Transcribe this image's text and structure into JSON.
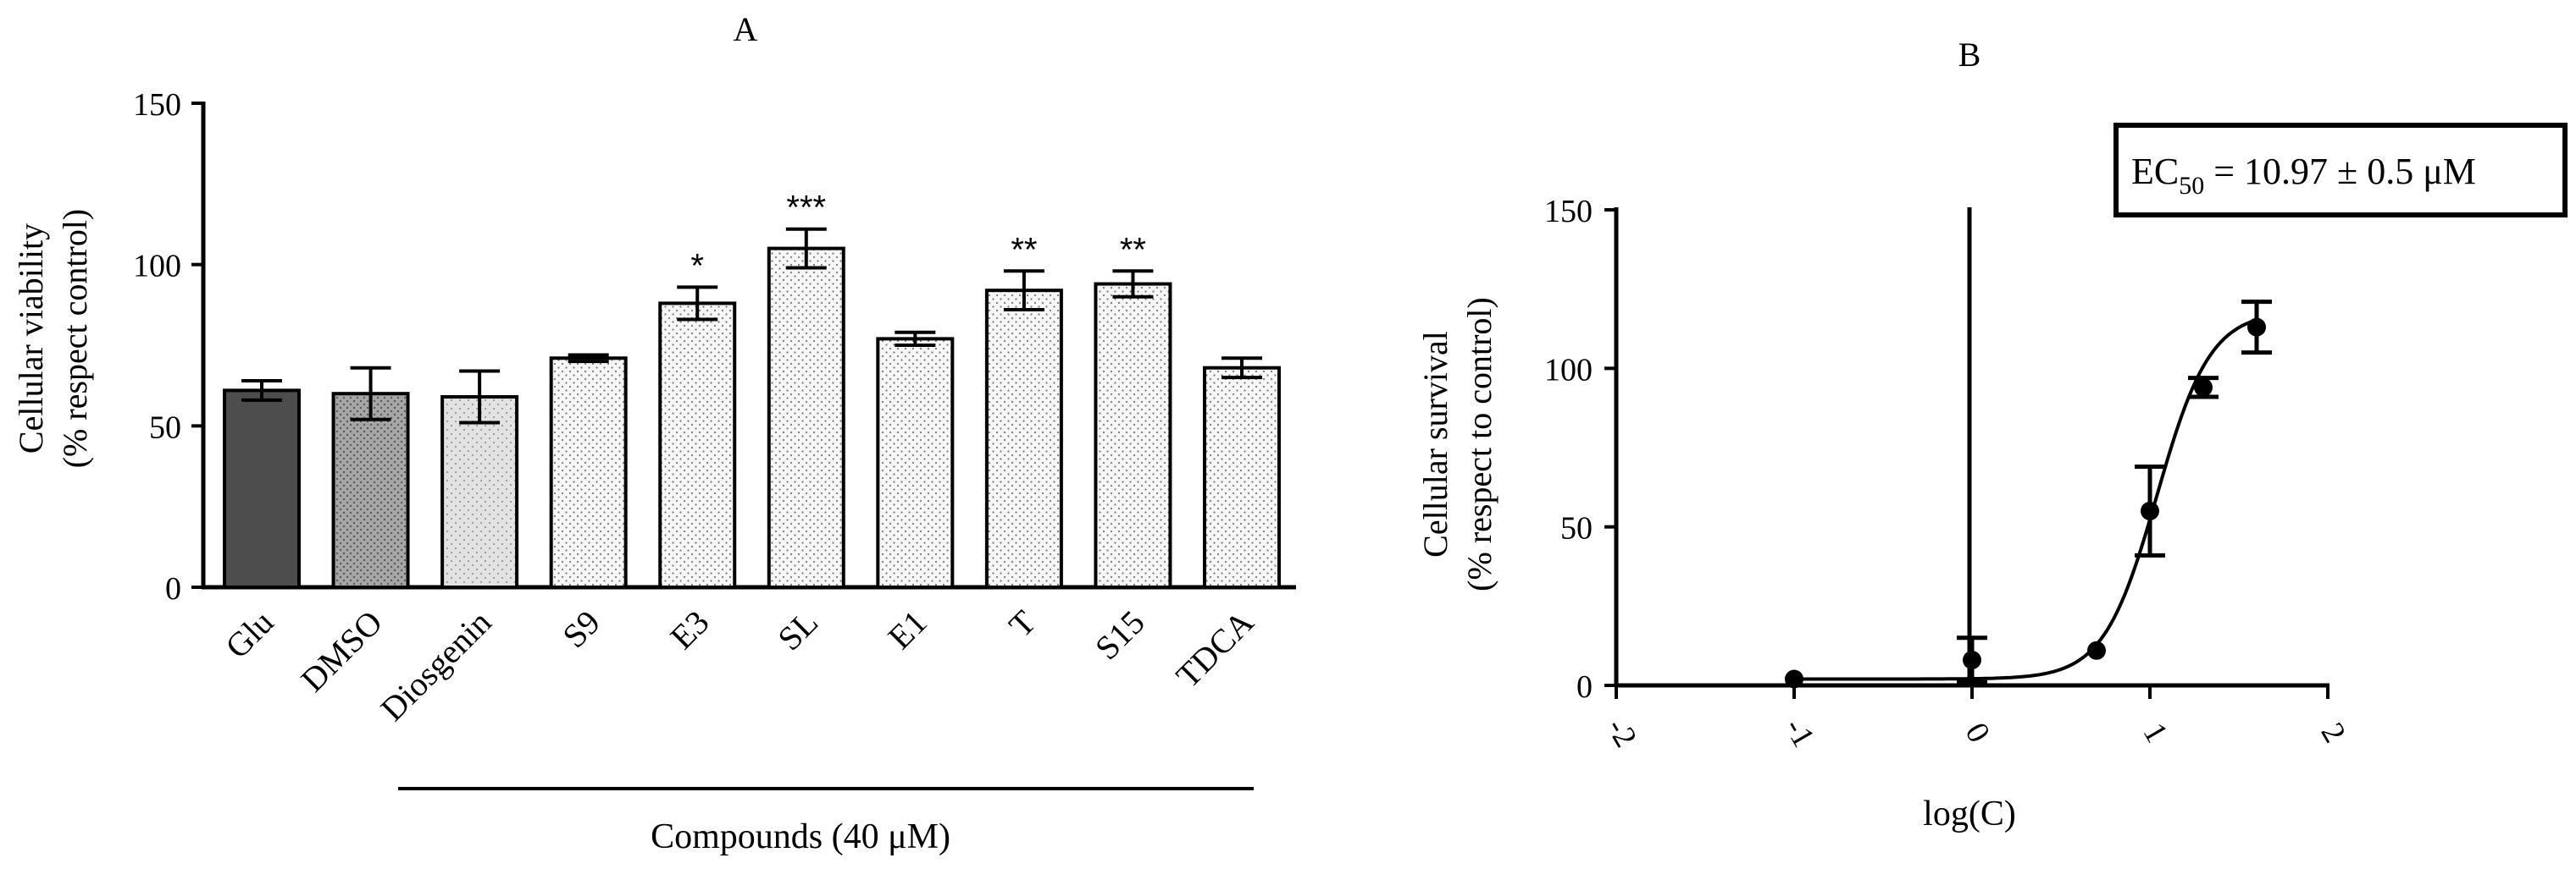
{
  "chart_data": [
    {
      "panel": "A",
      "type": "bar",
      "title": "A",
      "ylabel_line1": "Cellular viability",
      "ylabel_line2": "(% respect control)",
      "xlabel": "",
      "ylim": [
        0,
        150
      ],
      "yticks": [
        "0",
        "50",
        "100",
        "150"
      ],
      "categories": [
        "Glu",
        "DMSO",
        "Diosgenin",
        "S9",
        "E3",
        "SL",
        "E1",
        "T",
        "S15",
        "TDCA"
      ],
      "values": [
        61,
        60,
        59,
        71,
        88,
        105,
        77,
        92,
        94,
        68
      ],
      "errors": [
        3,
        8,
        8,
        1,
        5,
        6,
        2,
        6,
        4,
        3
      ],
      "significance": [
        "",
        "",
        "",
        "",
        "*",
        "***",
        "",
        "**",
        "**",
        ""
      ],
      "fill_styles": [
        "dark",
        "medium",
        "light-dotted",
        "dotted",
        "dotted",
        "dotted",
        "dotted",
        "dotted",
        "dotted",
        "dotted"
      ],
      "group_label": "Compounds (40  μM)",
      "group_range": [
        "Diosgenin",
        "TDCA"
      ],
      "grid": false
    },
    {
      "panel": "B",
      "type": "scatter",
      "title": "B",
      "ylabel_line1": "Cellular survival",
      "ylabel_line2": "(% respect to control)",
      "xlabel": "log(C)",
      "xlim": [
        -2,
        2
      ],
      "ylim": [
        0,
        150
      ],
      "xticks": [
        "-2",
        "-1",
        "0",
        "1",
        "2"
      ],
      "yticks": [
        "0",
        "50",
        "100",
        "150"
      ],
      "x": [
        -1,
        0,
        0.7,
        1,
        1.3,
        1.6
      ],
      "y": [
        2,
        8,
        11,
        55,
        94,
        113
      ],
      "errors": [
        0,
        7,
        0,
        14,
        3,
        8
      ],
      "fit": {
        "model": "sigmoidal dose-response",
        "bottom": 2,
        "top": 118,
        "logEC50": 1.04,
        "hill": 2.9
      },
      "annotation_ec": "EC",
      "annotation_sub": "50",
      "annotation_rest": " = 10.97 ± 0.5 μM",
      "grid": false
    }
  ],
  "colors": {
    "axis": "#000000",
    "bar_dark": "#4d4d4d",
    "bar_medium": "#a6a6a6",
    "bar_light": "#e2e2e2",
    "bar_dotted_bg": "#f6f6f6",
    "dot": "#777777"
  }
}
